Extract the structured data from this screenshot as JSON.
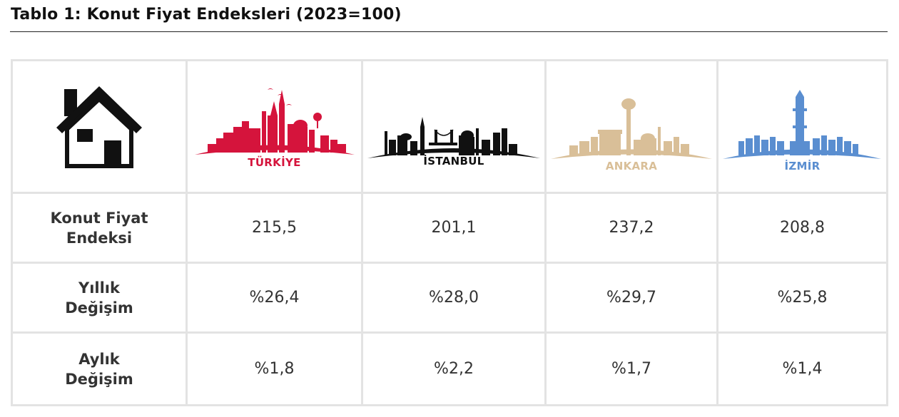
{
  "title": "Tablo 1: Konut Fiyat Endeksleri (2023=100)",
  "colors": {
    "turkiye": "#d5143c",
    "istanbul": "#111111",
    "ankara": "#d9bf98",
    "izmir": "#5a8ed0",
    "grid": "#e3e3e3"
  },
  "header": {
    "icon": "house-icon",
    "cities": [
      {
        "name": "TÜRKİYE",
        "icon": "turkiye-skyline-icon"
      },
      {
        "name": "İSTANBUL",
        "icon": "istanbul-skyline-icon"
      },
      {
        "name": "ANKARA",
        "icon": "ankara-skyline-icon"
      },
      {
        "name": "İZMİR",
        "icon": "izmir-skyline-icon"
      }
    ]
  },
  "rows": [
    {
      "label_line1": "Konut Fiyat",
      "label_line2": "Endeksi",
      "values": [
        "215,5",
        "201,1",
        "237,2",
        "208,8"
      ]
    },
    {
      "label_line1": "Yıllık",
      "label_line2": "Değişim",
      "values": [
        "%26,4",
        "%28,0",
        "%29,7",
        "%25,8"
      ]
    },
    {
      "label_line1": "Aylık",
      "label_line2": "Değişim",
      "values": [
        "%1,8",
        "%2,2",
        "%1,7",
        "%1,4"
      ]
    }
  ]
}
